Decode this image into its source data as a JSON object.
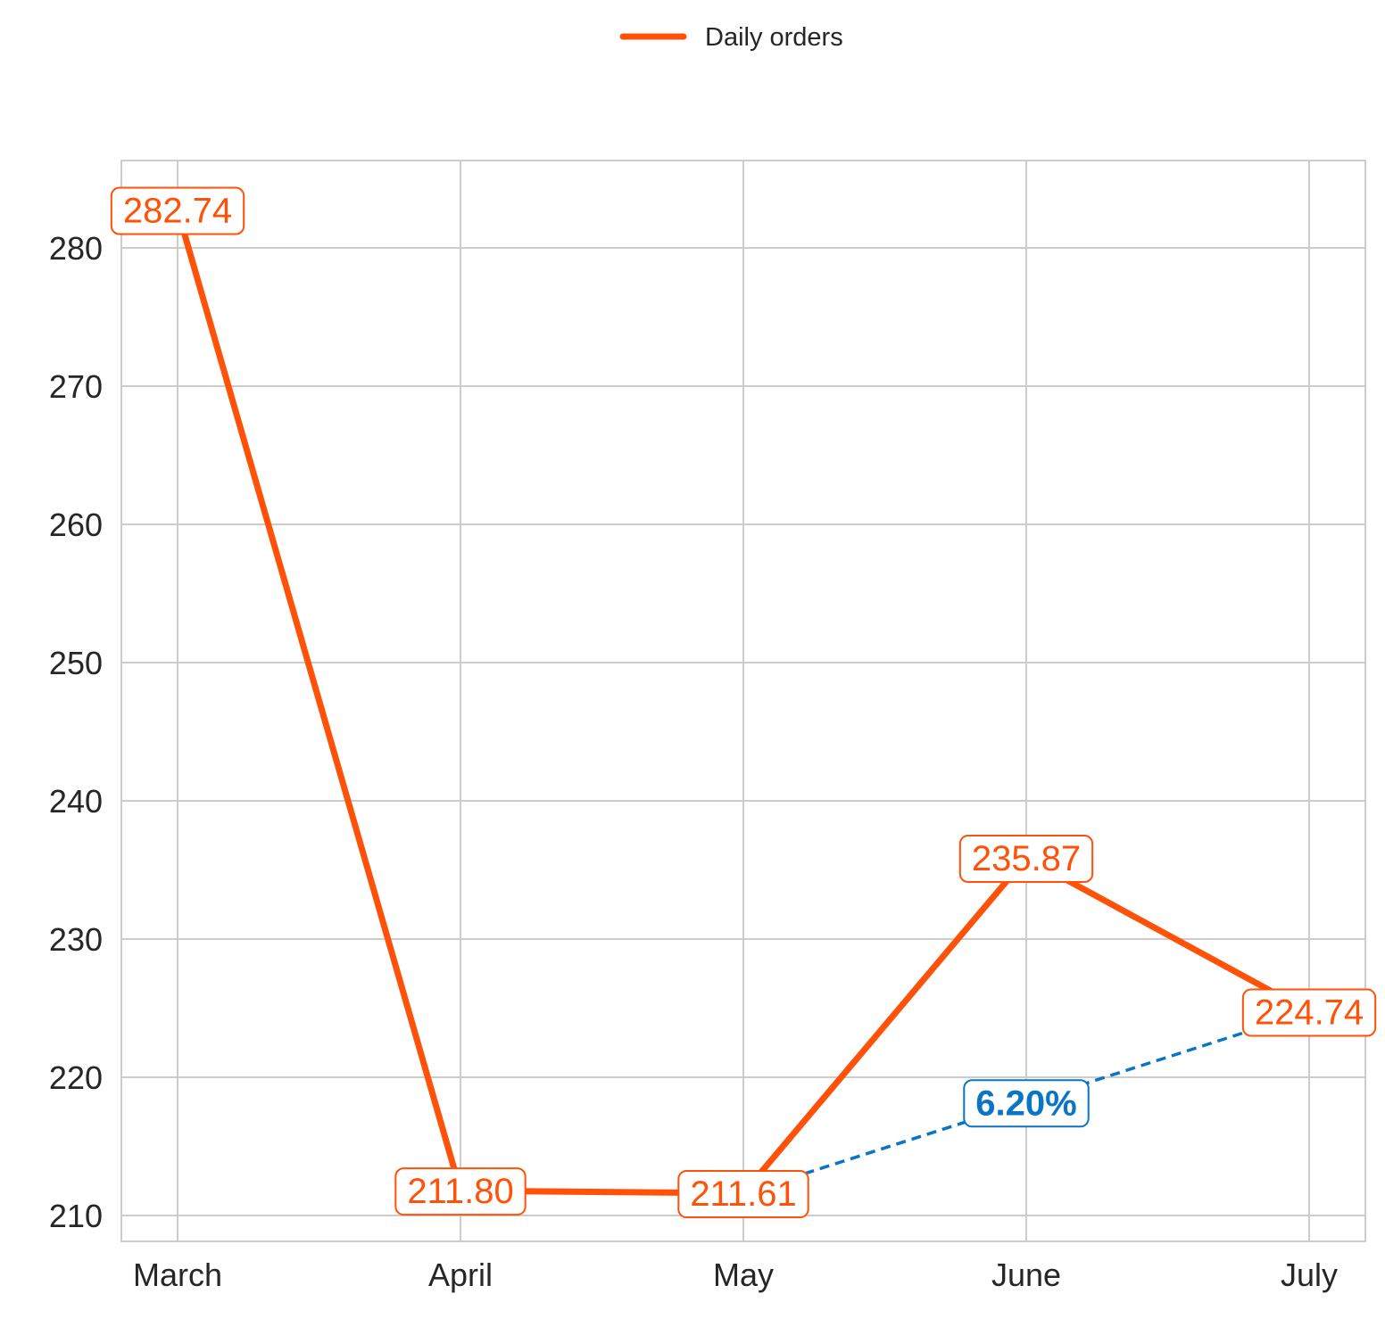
{
  "chart_data": {
    "type": "line",
    "categories": [
      "March",
      "April",
      "May",
      "June",
      "July"
    ],
    "series": [
      {
        "name": "Daily orders",
        "values": [
          282.74,
          211.8,
          211.61,
          235.87,
          224.74
        ],
        "color": "#ff5208"
      }
    ],
    "data_labels": [
      "282.74",
      "211.80",
      "211.61",
      "235.87",
      "224.74"
    ],
    "annotation": {
      "text": "6.20%",
      "from_category": "May",
      "to_category": "July",
      "style": "dashed",
      "color": "#0a75c6"
    },
    "ylim": [
      208,
      286
    ],
    "yticks": [
      210,
      220,
      230,
      240,
      250,
      260,
      270,
      280
    ],
    "grid": true,
    "legend_position": "top-center",
    "colors": {
      "grid": "#cccccc",
      "axis_text": "#262626"
    }
  }
}
